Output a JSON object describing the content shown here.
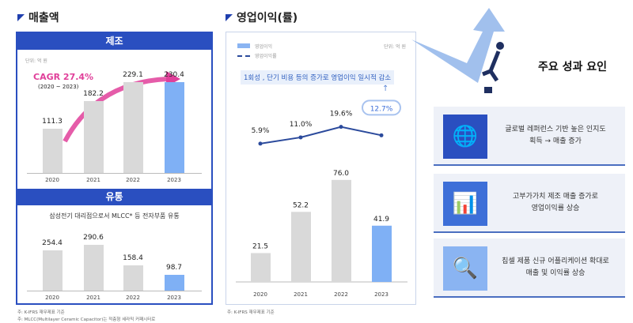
{
  "revenue": {
    "title": "매출액",
    "manufacturing": {
      "header": "제조",
      "unit": "단위: 억 원",
      "cagr": "CAGR 27.4%",
      "cagr_period": "(2020 ~ 2023)",
      "chart_data": {
        "type": "bar",
        "categories": [
          "2020",
          "2021",
          "2022",
          "2023"
        ],
        "values": [
          111.3,
          182.2,
          229.1,
          230.4
        ],
        "labels": [
          "111.3",
          "182.2",
          "229.1",
          "230.4"
        ],
        "highlight": "2023"
      }
    },
    "distribution": {
      "header": "유통",
      "subtitle": "삼성전기 대리점으로서 MLCC* 등 전자부품 유통",
      "chart_data": {
        "type": "bar",
        "categories": [
          "2020",
          "2021",
          "2022",
          "2023"
        ],
        "values": [
          254.4,
          290.6,
          158.4,
          98.7
        ],
        "labels": [
          "254.4",
          "290.6",
          "158.4",
          "98.7"
        ],
        "highlight": "2023"
      }
    },
    "notes": [
      "주: K-IFRS 재무제표 기준",
      "주: MLCC(Multilayer Ceramic Capacitor)는 적층형 세라믹 커패시터로"
    ]
  },
  "operating": {
    "title": "영업이익(률)",
    "unit": "단위: 억 원",
    "legend": [
      "영업이익",
      "영업이익률"
    ],
    "callout": "1회성 , 단기 비용 등의 증가로 영업이익 일시적 감소",
    "chart_data": {
      "type": "bar+line",
      "categories": [
        "2020",
        "2021",
        "2022",
        "2023"
      ],
      "bars": {
        "name": "영업이익",
        "values": [
          21.5,
          52.2,
          76.0,
          41.9
        ],
        "labels": [
          "21.5",
          "52.2",
          "76.0",
          "41.9"
        ]
      },
      "line": {
        "name": "영업이익률",
        "values": [
          5.9,
          11.0,
          19.6,
          12.7
        ],
        "labels": [
          "5.9%",
          "11.0%",
          "19.6%",
          "12.7%"
        ]
      }
    },
    "note": "주: K-IFRS 재무제표 기준"
  },
  "factors": {
    "title": "주요 성과 요인",
    "items": [
      {
        "icon": "globe-icon",
        "text": "글로벌 레퍼런스 기반 높은 인지도\n획득 → 매출 증가"
      },
      {
        "icon": "dashboard-icon",
        "text": "고부가가치 제조 매출 증가로\n영업이익률 상승"
      },
      {
        "icon": "magnifier-icon",
        "text": "칩셀 제품 신규 어플리케이션 확대로\n매출 및 이익률 상승"
      }
    ]
  },
  "colors": {
    "brand": "#2a4fc0",
    "highlight": "#7fb0f5",
    "bar": "#d9d9d9",
    "cagr": "#e0409a",
    "line": "#2b4a9c"
  }
}
